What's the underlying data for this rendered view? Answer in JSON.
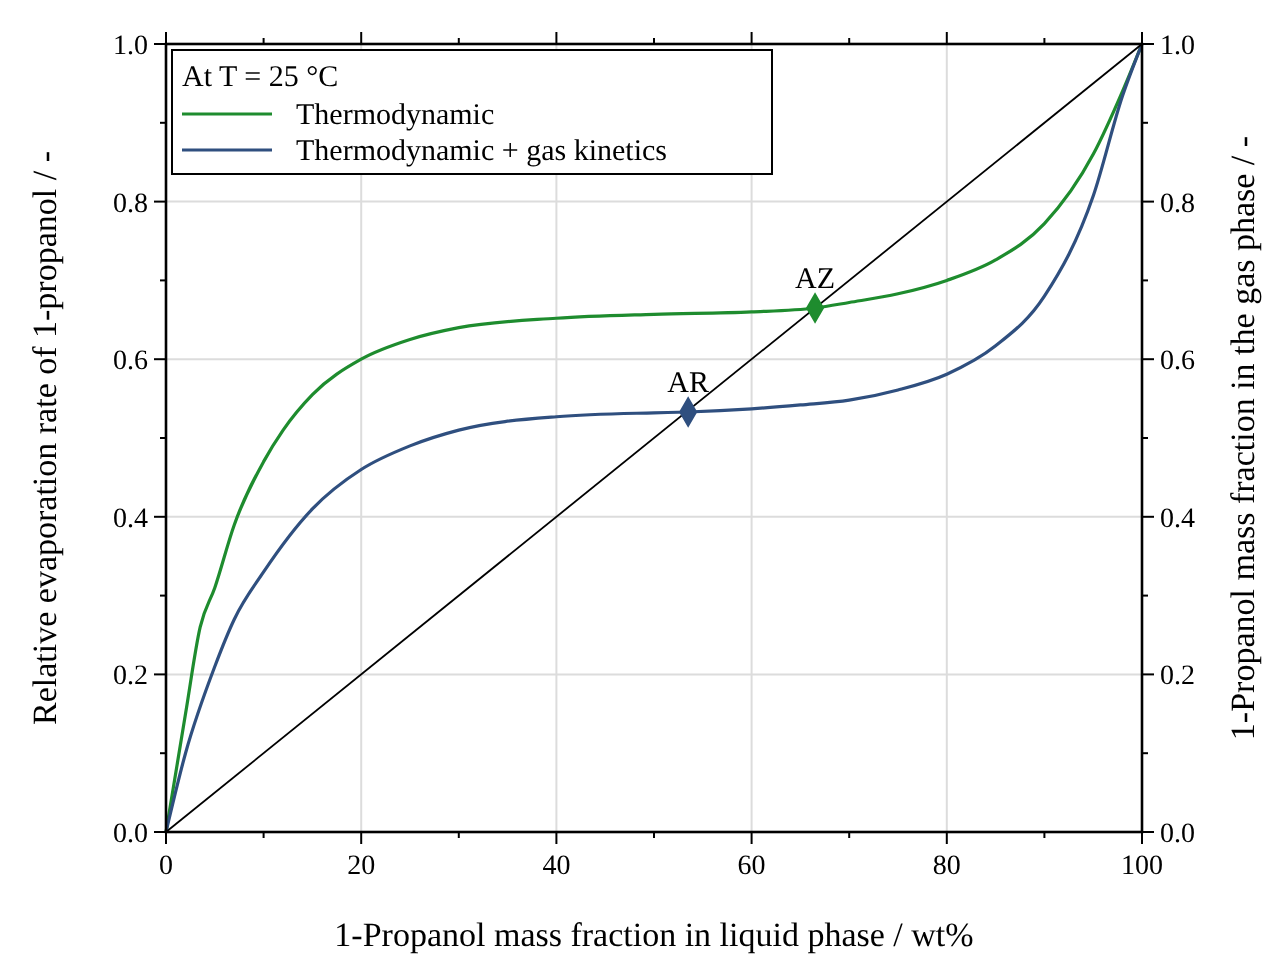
{
  "chart_data": {
    "type": "line",
    "xlabel": "1-Propanol mass fraction in liquid phase / wt%",
    "ylabel": "Relative evaporation rate of 1-propanol / -",
    "y2label": "1-Propanol mass fraction in the gas phase / -",
    "legend_title": "At T = 25 °C",
    "legend": "top left",
    "grid": true,
    "line_style": "solid",
    "xlim": [
      0,
      100
    ],
    "xticks": [
      0,
      {
        "value": 10,
        "label": null
      },
      20,
      {
        "value": 30,
        "label": null
      },
      40,
      {
        "value": 50,
        "label": null
      },
      60,
      {
        "value": 70,
        "label": null
      },
      80,
      {
        "value": 90,
        "label": null
      },
      100
    ],
    "ylim": [
      0,
      1
    ],
    "yticks": [
      {
        "value": 0,
        "label": "0.0"
      },
      {
        "value": 0.1,
        "label": null
      },
      0.2,
      {
        "value": 0.3,
        "label": null
      },
      0.4,
      {
        "value": 0.5,
        "label": null
      },
      0.6,
      {
        "value": 0.7,
        "label": null
      },
      0.8,
      {
        "value": 0.9,
        "label": null
      },
      {
        "value": 1,
        "label": "1.0"
      }
    ],
    "y2lim": [
      0,
      1
    ],
    "y2ticks": [
      {
        "value": 0,
        "label": "0.0"
      },
      {
        "value": 0.1,
        "label": null
      },
      0.2,
      {
        "value": 0.3,
        "label": null
      },
      0.4,
      {
        "value": 0.5,
        "label": null
      },
      0.6,
      {
        "value": 0.7,
        "label": null
      },
      0.8,
      {
        "value": 0.9,
        "label": null
      },
      {
        "value": 1,
        "label": "1.0"
      }
    ],
    "series": [
      {
        "name": "Thermodynamic",
        "color": "#1e8c2e",
        "x": [
          0,
          2,
          3.5,
          5,
          7,
          10,
          12,
          15,
          20,
          25,
          30,
          40,
          50,
          60,
          66.5,
          70,
          75,
          80,
          85,
          90,
          95,
          98,
          100
        ],
        "values": [
          0,
          0.15,
          0.26,
          0.31,
          0.39,
          0.47,
          0.51,
          0.555,
          0.6,
          0.625,
          0.64,
          0.652,
          0.657,
          0.66,
          0.665,
          0.672,
          0.683,
          0.7,
          0.726,
          0.772,
          0.86,
          0.94,
          1
        ]
      },
      {
        "name": "Thermodynamic + gas kinetics",
        "color": "#2f4f7f",
        "x": [
          0,
          2,
          5,
          7,
          10,
          15,
          20,
          25,
          30,
          40,
          50,
          53.5,
          60,
          65,
          70,
          75,
          80,
          85,
          90,
          95,
          98,
          100
        ],
        "values": [
          0,
          0.1,
          0.21,
          0.27,
          0.33,
          0.41,
          0.46,
          0.49,
          0.51,
          0.527,
          0.532,
          0.533,
          0.537,
          0.542,
          0.548,
          0.561,
          0.581,
          0.617,
          0.68,
          0.807,
          0.934,
          1
        ]
      },
      {
        "type": "line",
        "color": "#000000",
        "x": [
          0,
          100
        ],
        "values": [
          0,
          1
        ]
      },
      {
        "type": "scatter",
        "color": "#1e8c2e",
        "marker": "diamond",
        "x": [
          66.5
        ],
        "values": [
          0.665
        ]
      },
      {
        "type": "scatter",
        "color": "#2f4f7f",
        "marker": "diamond",
        "x": [
          53.5
        ],
        "values": [
          0.533
        ]
      }
    ],
    "annotations": [
      {
        "text": "AZ",
        "x": 66.5,
        "y": 0.665
      },
      {
        "text": "AR",
        "x": 53.5,
        "y": 0.533
      }
    ]
  }
}
